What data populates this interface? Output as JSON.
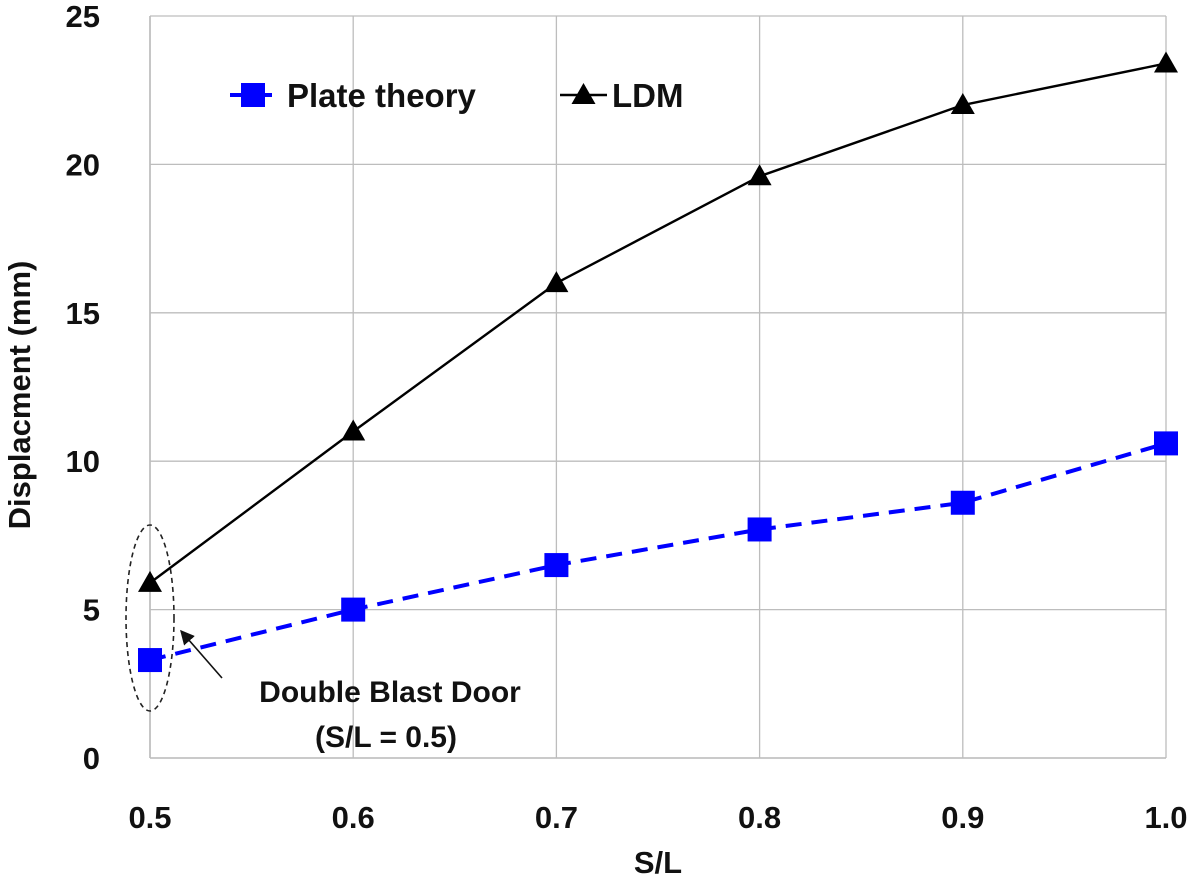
{
  "chart_data": {
    "type": "line",
    "title": "",
    "xlabel": "S/L",
    "ylabel": "Displacment (mm)",
    "x": [
      0.5,
      0.6,
      0.7,
      0.8,
      0.9,
      1.0
    ],
    "x_tick_labels": [
      "0.5",
      "0.6",
      "0.7",
      "0.8",
      "0.9",
      "1.0"
    ],
    "xlim": [
      0.5,
      1.0
    ],
    "ylim": [
      0,
      25
    ],
    "y_ticks": [
      0,
      5,
      10,
      15,
      20,
      25
    ],
    "y_tick_labels": [
      "0",
      "5",
      "10",
      "15",
      "20",
      "25"
    ],
    "grid": true,
    "legend_position": "top-left",
    "series": [
      {
        "name": "Plate theory",
        "values": [
          3.3,
          5.0,
          6.5,
          7.7,
          8.6,
          10.6
        ],
        "color": "#0000ff",
        "line_style": "dashed",
        "marker": "square"
      },
      {
        "name": "LDM",
        "values": [
          5.9,
          11.0,
          16.0,
          19.6,
          22.0,
          23.4
        ],
        "color": "#000000",
        "line_style": "solid",
        "marker": "triangle"
      }
    ],
    "annotations": [
      {
        "text_lines": [
          "Double Blast Door",
          "(S/L = 0.5)"
        ],
        "target_x": 0.5,
        "style": "dashed-ellipse-with-arrow"
      }
    ]
  }
}
